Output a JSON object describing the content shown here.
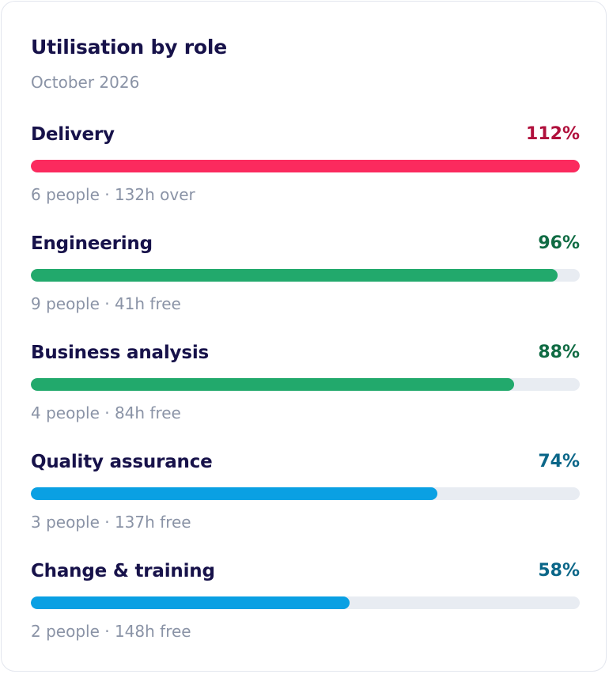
{
  "card": {
    "title": "Utilisation by role",
    "subtitle": "October 2026"
  },
  "colors": {
    "over": "#fb2a5e",
    "over_text": "#b0103c",
    "high": "#22a96c",
    "high_text": "#0f6b43",
    "mid": "#0aa0e3",
    "mid_text": "#0a6688",
    "track": "#e8ecf2"
  },
  "roles": [
    {
      "label": "Delivery",
      "percent_text": "112%",
      "utilisation": 112,
      "meta": "6 people · 132h over",
      "status": "over"
    },
    {
      "label": "Engineering",
      "percent_text": "96%",
      "utilisation": 96,
      "meta": "9 people · 41h free",
      "status": "high"
    },
    {
      "label": "Business analysis",
      "percent_text": "88%",
      "utilisation": 88,
      "meta": "4 people · 84h free",
      "status": "high"
    },
    {
      "label": "Quality assurance",
      "percent_text": "74%",
      "utilisation": 74,
      "meta": "3 people · 137h free",
      "status": "mid"
    },
    {
      "label": "Change & training",
      "percent_text": "58%",
      "utilisation": 58,
      "meta": "2 people · 148h free",
      "status": "mid"
    }
  ]
}
